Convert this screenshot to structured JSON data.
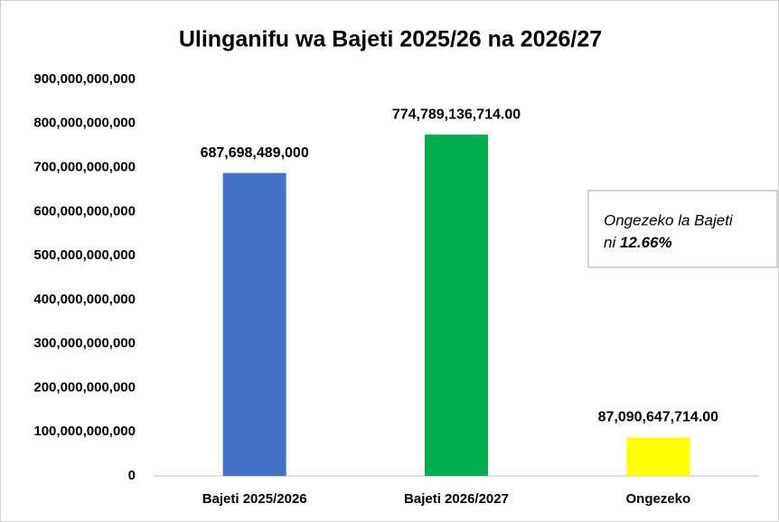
{
  "chart_data": {
    "type": "bar",
    "title": "Ulinganifu wa Bajeti 2025/26 na 2026/27",
    "categories": [
      "Bajeti 2025/2026",
      "Bajeti 2026/2027",
      "Ongezeko"
    ],
    "values": [
      687698489000,
      774789136714,
      87090647714
    ],
    "value_labels": [
      "687,698,489,000",
      "774,789,136,714.00",
      "87,090,647,714.00"
    ],
    "colors": [
      "#4472c4",
      "#00b050",
      "#ffff00"
    ],
    "ylim": [
      0,
      900000000000
    ],
    "yticks": [
      0,
      {
        "value": 100000000000,
        "label": "100,000,000,000"
      },
      {
        "value": 200000000000,
        "label": "200,000,000,000"
      },
      {
        "value": 300000000000,
        "label": "300,000,000,000"
      },
      {
        "value": 400000000000,
        "label": "400,000,000,000"
      },
      {
        "value": 500000000000,
        "label": "500,000,000,000"
      },
      {
        "value": 600000000000,
        "label": "600,000,000,000"
      },
      {
        "value": 700000000000,
        "label": "700,000,000,000"
      },
      {
        "value": 800000000000,
        "label": "800,000,000,000"
      },
      {
        "value": 900000000000,
        "label": "900,000,000,000"
      }
    ],
    "grid": false,
    "annotation": {
      "line1": "Ongezeko la Bajeti",
      "prefix": "ni",
      "highlight": "12.66%"
    }
  }
}
